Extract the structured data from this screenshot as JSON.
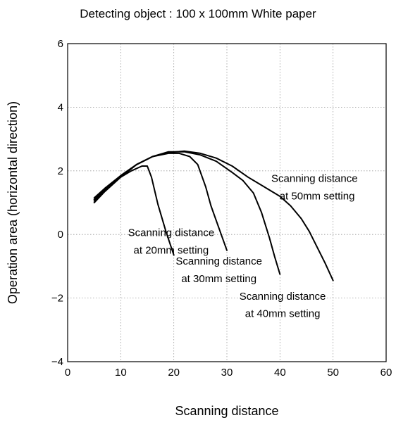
{
  "chart_data": {
    "type": "line",
    "title": "Detecting object : 100 x 100mm White paper",
    "xlabel": "Scanning distance",
    "ylabel": "Operation area (horizontal direction)",
    "xlim": [
      0,
      60
    ],
    "ylim": [
      -4,
      6
    ],
    "xticks": [
      0,
      10,
      20,
      30,
      40,
      50,
      60
    ],
    "yticks": [
      -4,
      -2,
      0,
      2,
      4,
      6
    ],
    "ytick_labels": [
      "−4",
      "−2",
      "0",
      "2",
      "4",
      "6"
    ],
    "grid": true,
    "series": [
      {
        "name": "20mm",
        "label_lines": [
          "Scanning distance",
          "at 20mm setting"
        ],
        "x": [
          5,
          6,
          8,
          10,
          12,
          14,
          15,
          15.8,
          17,
          18.5,
          20
        ],
        "y": [
          1.1,
          1.25,
          1.55,
          1.8,
          2.0,
          2.15,
          2.15,
          1.8,
          0.95,
          0.1,
          -0.65
        ]
      },
      {
        "name": "30mm",
        "label_lines": [
          "Scanning distance",
          "at 30mm setting"
        ],
        "x": [
          5,
          7,
          10,
          13,
          16,
          19,
          21,
          23,
          24.5,
          26,
          27,
          28.5,
          30
        ],
        "y": [
          1.15,
          1.45,
          1.85,
          2.2,
          2.45,
          2.55,
          2.55,
          2.45,
          2.2,
          1.5,
          0.9,
          0.2,
          -0.5
        ]
      },
      {
        "name": "40mm",
        "label_lines": [
          "Scanning distance",
          "at 40mm setting"
        ],
        "x": [
          5,
          7,
          10,
          13,
          16,
          19,
          22,
          25,
          28,
          31,
          33,
          35,
          36.5,
          38,
          39,
          40
        ],
        "y": [
          1.05,
          1.4,
          1.85,
          2.2,
          2.45,
          2.6,
          2.6,
          2.5,
          2.3,
          1.95,
          1.7,
          1.3,
          0.7,
          -0.1,
          -0.7,
          -1.25
        ]
      },
      {
        "name": "50mm",
        "label_lines": [
          "Scanning distance",
          "at 50mm setting"
        ],
        "x": [
          5,
          7,
          10,
          13,
          16,
          19,
          22,
          25,
          28,
          31,
          34,
          37,
          40,
          42,
          44,
          45.5,
          47,
          48.5,
          50
        ],
        "y": [
          1.0,
          1.35,
          1.8,
          2.2,
          2.45,
          2.58,
          2.62,
          2.55,
          2.4,
          2.15,
          1.8,
          1.5,
          1.2,
          0.9,
          0.5,
          0.1,
          -0.4,
          -0.9,
          -1.45
        ]
      }
    ]
  }
}
